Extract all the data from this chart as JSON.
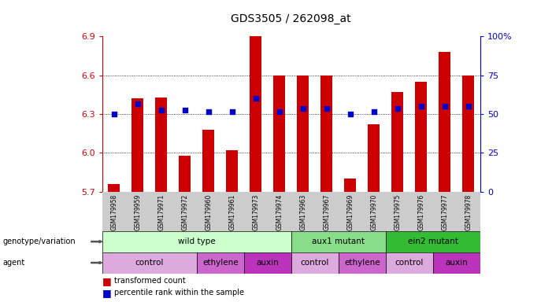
{
  "title": "GDS3505 / 262098_at",
  "samples": [
    "GSM179958",
    "GSM179959",
    "GSM179971",
    "GSM179972",
    "GSM179960",
    "GSM179961",
    "GSM179973",
    "GSM179974",
    "GSM179963",
    "GSM179967",
    "GSM179969",
    "GSM179970",
    "GSM179975",
    "GSM179976",
    "GSM179977",
    "GSM179978"
  ],
  "bar_values": [
    5.76,
    6.42,
    6.43,
    5.98,
    6.18,
    6.02,
    6.9,
    6.6,
    6.6,
    6.6,
    5.8,
    6.22,
    6.47,
    6.55,
    6.78,
    6.6
  ],
  "dot_values": [
    6.3,
    6.38,
    6.33,
    6.33,
    6.32,
    6.32,
    6.42,
    6.32,
    6.34,
    6.34,
    6.3,
    6.32,
    6.34,
    6.36,
    6.36,
    6.36
  ],
  "ylim": [
    5.7,
    6.9
  ],
  "yticks_left": [
    5.7,
    6.0,
    6.3,
    6.6,
    6.9
  ],
  "yticks_right_labels": [
    "0",
    "25",
    "50",
    "75",
    "100%"
  ],
  "yticks_right_pos": [
    5.7,
    6.0,
    6.3,
    6.6,
    6.9
  ],
  "bar_color": "#cc0000",
  "dot_color": "#0000cc",
  "genotype_groups": [
    {
      "label": "wild type",
      "start": 0,
      "end": 8,
      "color": "#ccffcc"
    },
    {
      "label": "aux1 mutant",
      "start": 8,
      "end": 12,
      "color": "#88dd88"
    },
    {
      "label": "ein2 mutant",
      "start": 12,
      "end": 16,
      "color": "#33bb33"
    }
  ],
  "agent_groups": [
    {
      "label": "control",
      "start": 0,
      "end": 4,
      "color": "#ddaadd"
    },
    {
      "label": "ethylene",
      "start": 4,
      "end": 6,
      "color": "#cc66cc"
    },
    {
      "label": "auxin",
      "start": 6,
      "end": 8,
      "color": "#bb33bb"
    },
    {
      "label": "control",
      "start": 8,
      "end": 10,
      "color": "#ddaadd"
    },
    {
      "label": "ethylene",
      "start": 10,
      "end": 12,
      "color": "#cc66cc"
    },
    {
      "label": "control",
      "start": 12,
      "end": 14,
      "color": "#ddaadd"
    },
    {
      "label": "auxin",
      "start": 14,
      "end": 16,
      "color": "#bb33bb"
    }
  ],
  "left_label_color": "#cc0000",
  "right_label_color": "#0000cc",
  "grid_color": "#000000",
  "sample_bg_color": "#cccccc"
}
